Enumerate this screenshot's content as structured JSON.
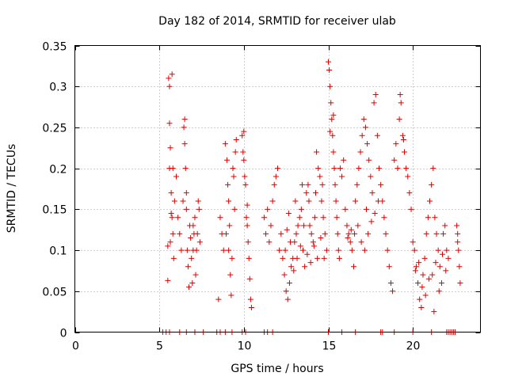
{
  "chart_data": {
    "type": "scatter",
    "title": "Day 182 of 2014, SRMTID for receiver ulab",
    "xlabel": "GPS time / hours",
    "ylabel": "SRMTID / TECUs",
    "xlim": [
      0,
      24
    ],
    "ylim": [
      0,
      0.35
    ],
    "xticks": [
      0,
      5,
      10,
      15,
      20
    ],
    "yticks": [
      0,
      0.05,
      0.1,
      0.15,
      0.2,
      0.25,
      0.3,
      0.35
    ],
    "xtick_labels": [
      "0",
      "5",
      "10",
      "15",
      "20"
    ],
    "ytick_labels": [
      "0",
      "0.05",
      "0.1",
      "0.15",
      "0.2",
      "0.25",
      "0.3",
      "0.35"
    ],
    "grid": true,
    "marker": "+",
    "color": "#e00000",
    "series": [
      {
        "name": "SRMTID",
        "points": [
          [
            5.5,
            0.063
          ],
          [
            5.5,
            0.105
          ],
          [
            5.55,
            0.31
          ],
          [
            5.6,
            0.3
          ],
          [
            5.6,
            0.255
          ],
          [
            5.65,
            0.225
          ],
          [
            5.6,
            0.2
          ],
          [
            5.7,
            0.17
          ],
          [
            5.75,
            0.14
          ],
          [
            5.65,
            0.11
          ],
          [
            5.8,
            0.12
          ],
          [
            5.85,
            0.09
          ],
          [
            5.9,
            0.16
          ],
          [
            5.7,
            0.145
          ],
          [
            5.8,
            0.2
          ],
          [
            5.75,
            0.315
          ],
          [
            6.0,
            0.19
          ],
          [
            6.1,
            0.14
          ],
          [
            6.2,
            0.12
          ],
          [
            6.3,
            0.1
          ],
          [
            6.4,
            0.16
          ],
          [
            6.45,
            0.25
          ],
          [
            6.5,
            0.23
          ],
          [
            6.55,
            0.2
          ],
          [
            6.6,
            0.15
          ],
          [
            6.65,
            0.1
          ],
          [
            6.7,
            0.08
          ],
          [
            6.5,
            0.26
          ],
          [
            6.6,
            0.17
          ],
          [
            6.8,
            0.13
          ],
          [
            6.85,
            0.115
          ],
          [
            6.9,
            0.09
          ],
          [
            6.95,
            0.06
          ],
          [
            7.0,
            0.13
          ],
          [
            7.05,
            0.12
          ],
          [
            7.1,
            0.14
          ],
          [
            7.15,
            0.07
          ],
          [
            7.2,
            0.1
          ],
          [
            7.25,
            0.12
          ],
          [
            7.3,
            0.16
          ],
          [
            7.35,
            0.15
          ],
          [
            7.4,
            0.11
          ],
          [
            6.75,
            0.055
          ],
          [
            7.0,
            0.1
          ],
          [
            8.5,
            0.04
          ],
          [
            8.6,
            0.14
          ],
          [
            8.7,
            0.12
          ],
          [
            8.8,
            0.1
          ],
          [
            8.9,
            0.23
          ],
          [
            9.0,
            0.21
          ],
          [
            9.05,
            0.18
          ],
          [
            9.1,
            0.16
          ],
          [
            9.15,
            0.13
          ],
          [
            9.2,
            0.07
          ],
          [
            9.25,
            0.045
          ],
          [
            9.3,
            0.09
          ],
          [
            9.35,
            0.2
          ],
          [
            9.4,
            0.19
          ],
          [
            9.45,
            0.15
          ],
          [
            9.5,
            0.22
          ],
          [
            9.55,
            0.235
          ],
          [
            8.95,
            0.12
          ],
          [
            9.1,
            0.1
          ],
          [
            9.9,
            0.24
          ],
          [
            9.95,
            0.22
          ],
          [
            10.0,
            0.21
          ],
          [
            10.05,
            0.19
          ],
          [
            10.1,
            0.18
          ],
          [
            10.15,
            0.14
          ],
          [
            10.2,
            0.13
          ],
          [
            10.25,
            0.11
          ],
          [
            10.3,
            0.09
          ],
          [
            10.35,
            0.065
          ],
          [
            10.4,
            0.04
          ],
          [
            10.45,
            0.03
          ],
          [
            10.0,
            0.245
          ],
          [
            10.2,
            0.155
          ],
          [
            11.2,
            0.14
          ],
          [
            11.3,
            0.12
          ],
          [
            11.4,
            0.15
          ],
          [
            11.5,
            0.11
          ],
          [
            11.6,
            0.13
          ],
          [
            11.7,
            0.16
          ],
          [
            11.8,
            0.18
          ],
          [
            11.9,
            0.19
          ],
          [
            12.0,
            0.2
          ],
          [
            12.1,
            0.1
          ],
          [
            12.2,
            0.12
          ],
          [
            12.3,
            0.09
          ],
          [
            12.4,
            0.07
          ],
          [
            12.5,
            0.05
          ],
          [
            12.6,
            0.04
          ],
          [
            12.7,
            0.06
          ],
          [
            12.8,
            0.08
          ],
          [
            12.9,
            0.09
          ],
          [
            13.0,
            0.11
          ],
          [
            13.1,
            0.12
          ],
          [
            13.2,
            0.13
          ],
          [
            13.3,
            0.14
          ],
          [
            13.4,
            0.15
          ],
          [
            13.5,
            0.1
          ],
          [
            13.6,
            0.08
          ],
          [
            13.7,
            0.17
          ],
          [
            13.8,
            0.18
          ],
          [
            13.9,
            0.13
          ],
          [
            14.0,
            0.12
          ],
          [
            14.1,
            0.11
          ],
          [
            14.2,
            0.14
          ],
          [
            14.3,
            0.22
          ],
          [
            14.4,
            0.2
          ],
          [
            14.5,
            0.19
          ],
          [
            14.6,
            0.16
          ],
          [
            14.7,
            0.14
          ],
          [
            14.8,
            0.12
          ],
          [
            14.9,
            0.1
          ],
          [
            12.45,
            0.1
          ],
          [
            12.55,
            0.125
          ],
          [
            12.75,
            0.11
          ],
          [
            12.95,
            0.075
          ],
          [
            13.15,
            0.09
          ],
          [
            13.35,
            0.105
          ],
          [
            13.55,
            0.13
          ],
          [
            13.75,
            0.095
          ],
          [
            13.95,
            0.085
          ],
          [
            14.15,
            0.105
          ],
          [
            14.35,
            0.09
          ],
          [
            14.55,
            0.115
          ],
          [
            14.75,
            0.09
          ],
          [
            12.65,
            0.145
          ],
          [
            13.05,
            0.16
          ],
          [
            13.45,
            0.18
          ],
          [
            13.85,
            0.16
          ],
          [
            14.25,
            0.17
          ],
          [
            14.65,
            0.18
          ],
          [
            15.0,
            0.33
          ],
          [
            15.05,
            0.32
          ],
          [
            15.1,
            0.3
          ],
          [
            15.15,
            0.28
          ],
          [
            15.2,
            0.26
          ],
          [
            15.25,
            0.24
          ],
          [
            15.3,
            0.22
          ],
          [
            15.35,
            0.2
          ],
          [
            15.4,
            0.18
          ],
          [
            15.45,
            0.16
          ],
          [
            15.5,
            0.14
          ],
          [
            15.55,
            0.12
          ],
          [
            15.6,
            0.1
          ],
          [
            15.65,
            0.09
          ],
          [
            15.7,
            0.2
          ],
          [
            15.8,
            0.19
          ],
          [
            15.9,
            0.21
          ],
          [
            15.1,
            0.245
          ],
          [
            15.3,
            0.265
          ],
          [
            16.0,
            0.15
          ],
          [
            16.1,
            0.13
          ],
          [
            16.2,
            0.12
          ],
          [
            16.3,
            0.11
          ],
          [
            16.4,
            0.1
          ],
          [
            16.5,
            0.08
          ],
          [
            16.6,
            0.16
          ],
          [
            16.7,
            0.18
          ],
          [
            16.8,
            0.2
          ],
          [
            16.9,
            0.22
          ],
          [
            17.0,
            0.24
          ],
          [
            17.1,
            0.26
          ],
          [
            17.2,
            0.25
          ],
          [
            17.3,
            0.23
          ],
          [
            17.4,
            0.21
          ],
          [
            17.5,
            0.19
          ],
          [
            17.6,
            0.17
          ],
          [
            17.7,
            0.28
          ],
          [
            17.8,
            0.29
          ],
          [
            17.9,
            0.24
          ],
          [
            16.15,
            0.115
          ],
          [
            16.35,
            0.125
          ],
          [
            16.55,
            0.12
          ],
          [
            16.75,
            0.13
          ],
          [
            16.95,
            0.11
          ],
          [
            17.15,
            0.1
          ],
          [
            17.35,
            0.12
          ],
          [
            17.55,
            0.135
          ],
          [
            17.75,
            0.145
          ],
          [
            17.95,
            0.16
          ],
          [
            17.25,
            0.15
          ],
          [
            18.0,
            0.2
          ],
          [
            18.1,
            0.18
          ],
          [
            18.2,
            0.16
          ],
          [
            18.3,
            0.14
          ],
          [
            18.4,
            0.12
          ],
          [
            18.5,
            0.1
          ],
          [
            18.6,
            0.08
          ],
          [
            18.7,
            0.06
          ],
          [
            18.8,
            0.05
          ],
          [
            18.9,
            0.21
          ],
          [
            19.0,
            0.23
          ],
          [
            19.1,
            0.2
          ],
          [
            19.2,
            0.26
          ],
          [
            19.3,
            0.28
          ],
          [
            19.4,
            0.24
          ],
          [
            19.5,
            0.22
          ],
          [
            19.6,
            0.2
          ],
          [
            19.7,
            0.19
          ],
          [
            19.8,
            0.17
          ],
          [
            19.9,
            0.15
          ],
          [
            19.25,
            0.29
          ],
          [
            19.45,
            0.235
          ],
          [
            20.0,
            0.11
          ],
          [
            20.1,
            0.1
          ],
          [
            20.2,
            0.08
          ],
          [
            20.3,
            0.06
          ],
          [
            20.4,
            0.04
          ],
          [
            20.5,
            0.03
          ],
          [
            20.6,
            0.07
          ],
          [
            20.7,
            0.09
          ],
          [
            20.8,
            0.12
          ],
          [
            20.9,
            0.14
          ],
          [
            21.0,
            0.16
          ],
          [
            21.1,
            0.18
          ],
          [
            21.2,
            0.2
          ],
          [
            21.3,
            0.14
          ],
          [
            21.4,
            0.12
          ],
          [
            21.5,
            0.1
          ],
          [
            21.6,
            0.08
          ],
          [
            21.7,
            0.06
          ],
          [
            21.8,
            0.12
          ],
          [
            21.9,
            0.13
          ],
          [
            22.0,
            0.1
          ],
          [
            22.1,
            0.09
          ],
          [
            20.15,
            0.075
          ],
          [
            20.35,
            0.085
          ],
          [
            20.55,
            0.055
          ],
          [
            20.75,
            0.045
          ],
          [
            20.95,
            0.065
          ],
          [
            21.15,
            0.07
          ],
          [
            21.35,
            0.085
          ],
          [
            21.55,
            0.05
          ],
          [
            21.75,
            0.095
          ],
          [
            21.95,
            0.075
          ],
          [
            21.25,
            0.025
          ],
          [
            22.6,
            0.13
          ],
          [
            22.65,
            0.12
          ],
          [
            22.7,
            0.1
          ],
          [
            22.75,
            0.08
          ],
          [
            22.8,
            0.06
          ],
          [
            22.65,
            0.11
          ],
          [
            5.2,
            0
          ],
          [
            5.4,
            0
          ],
          [
            5.6,
            0
          ],
          [
            6.2,
            0
          ],
          [
            6.6,
            0
          ],
          [
            7.1,
            0
          ],
          [
            7.6,
            0
          ],
          [
            8.4,
            0
          ],
          [
            8.6,
            0
          ],
          [
            8.9,
            0
          ],
          [
            9.3,
            0
          ],
          [
            9.9,
            0
          ],
          [
            10.1,
            0
          ],
          [
            11.2,
            0
          ],
          [
            11.4,
            0
          ],
          [
            11.7,
            0
          ],
          [
            15.0,
            0
          ],
          [
            15.8,
            0
          ],
          [
            16.6,
            0
          ],
          [
            18.1,
            0
          ],
          [
            18.2,
            0
          ],
          [
            18.9,
            0
          ],
          [
            20.0,
            0
          ],
          [
            21.1,
            0
          ],
          [
            22.0,
            0
          ],
          [
            22.1,
            0
          ],
          [
            22.2,
            0
          ],
          [
            22.3,
            0
          ],
          [
            22.4,
            0
          ],
          [
            22.5,
            0
          ]
        ]
      }
    ]
  }
}
